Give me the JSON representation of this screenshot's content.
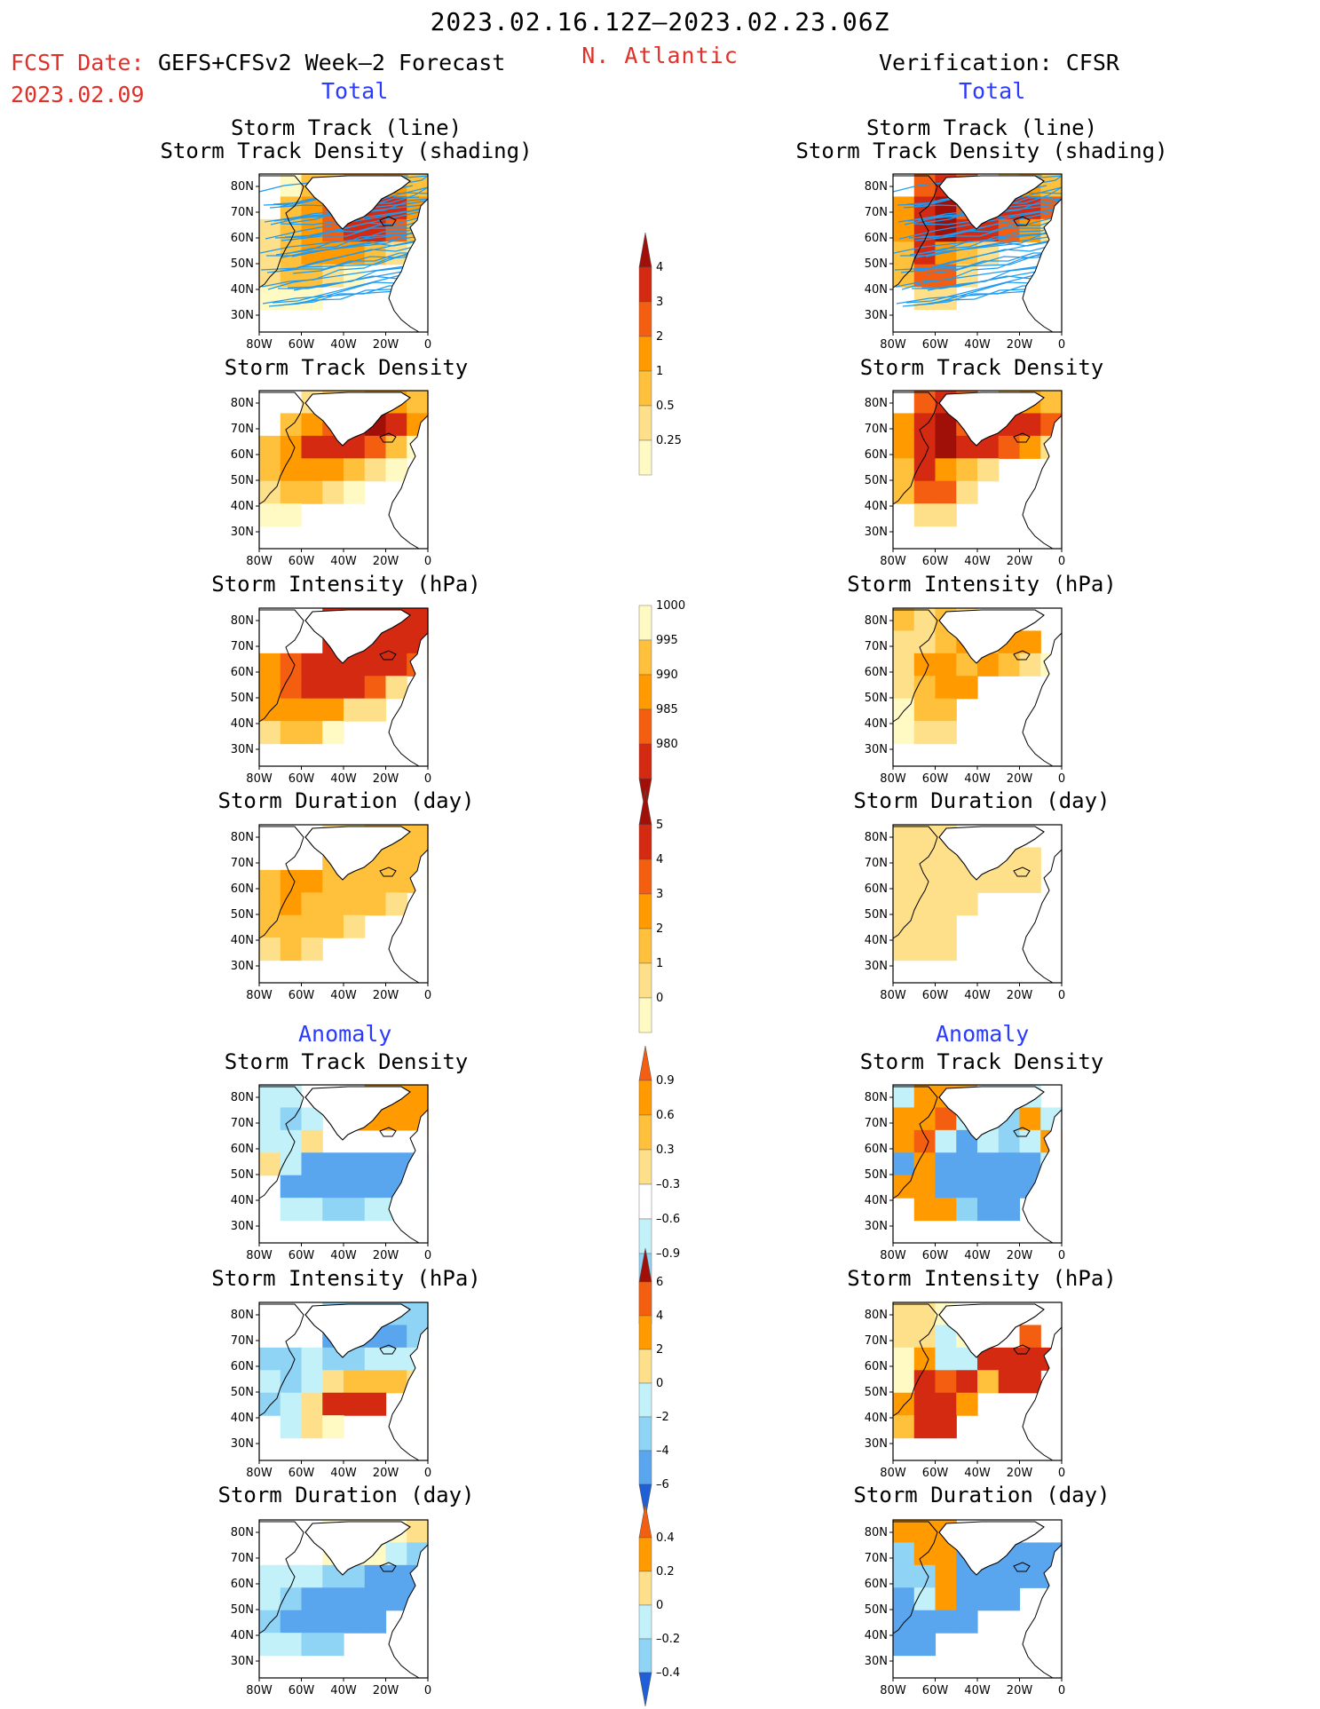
{
  "header": {
    "date_range": "2023.02.16.12Z–2023.02.23.06Z",
    "fcst_label": "FCST Date:",
    "fcst_model": "GEFS+CFSv2 Week–2 Forecast",
    "fcst_date": "2023.02.09",
    "region": "N. Atlantic",
    "verification": "Verification: CFSR",
    "total_left": "Total",
    "total_right": "Total",
    "anomaly_left": "Anomaly",
    "anomaly_right": "Anomaly"
  },
  "titles": {
    "track_line": "Storm Track (line)",
    "track_density_shading": "Storm Track Density (shading)",
    "track_density": "Storm Track Density",
    "intensity": "Storm Intensity (hPa)",
    "duration": "Storm Duration (day)"
  },
  "axes": {
    "x_ticks": [
      "80W",
      "60W",
      "40W",
      "20W",
      "0"
    ],
    "y_ticks": [
      "80N",
      "70N",
      "60N",
      "50N",
      "40N",
      "30N"
    ]
  },
  "colors": {
    "warm": [
      "#fff9c4",
      "#ffe08a",
      "#ffc13b",
      "#ff9a00",
      "#f45e10",
      "#d42a12",
      "#a01008"
    ],
    "cool": [
      "#c2f1f9",
      "#8fd3f5",
      "#5aa6ee",
      "#1f5fd8"
    ],
    "track_line": "#1e9bf0",
    "land_line": "#000000",
    "coast_fill": "#ffffff"
  },
  "chart_data": [
    {
      "type": "heatmap",
      "panel": "forecast-total-track-line",
      "title": "Storm Track (line)",
      "subtitle": "Storm Track Density (shading)",
      "xlim": [
        -80,
        0
      ],
      "ylim": [
        25,
        85
      ],
      "note_series": [
        "track lines",
        "density shading"
      ]
    },
    {
      "type": "heatmap",
      "panel": "forecast-total-density",
      "title": "Storm Track Density",
      "xlim": [
        -80,
        0
      ],
      "ylim": [
        25,
        85
      ]
    },
    {
      "type": "heatmap",
      "panel": "forecast-total-intensity",
      "title": "Storm Intensity (hPa)",
      "xlim": [
        -80,
        0
      ],
      "ylim": [
        25,
        85
      ]
    },
    {
      "type": "heatmap",
      "panel": "forecast-total-duration",
      "title": "Storm Duration (day)",
      "xlim": [
        -80,
        0
      ],
      "ylim": [
        25,
        85
      ]
    },
    {
      "type": "heatmap",
      "panel": "forecast-anomaly-density",
      "title": "Storm Track Density",
      "xlim": [
        -80,
        0
      ],
      "ylim": [
        25,
        85
      ]
    },
    {
      "type": "heatmap",
      "panel": "forecast-anomaly-intensity",
      "title": "Storm Intensity (hPa)",
      "xlim": [
        -80,
        0
      ],
      "ylim": [
        25,
        85
      ]
    },
    {
      "type": "heatmap",
      "panel": "forecast-anomaly-duration",
      "title": "Storm Duration (day)",
      "xlim": [
        -80,
        0
      ],
      "ylim": [
        25,
        85
      ]
    },
    {
      "type": "heatmap",
      "panel": "verification-total-track-line",
      "title": "Storm Track (line)",
      "subtitle": "Storm Track Density (shading)",
      "xlim": [
        -80,
        0
      ],
      "ylim": [
        25,
        85
      ]
    },
    {
      "type": "heatmap",
      "panel": "verification-total-density",
      "title": "Storm Track Density",
      "xlim": [
        -80,
        0
      ],
      "ylim": [
        25,
        85
      ]
    },
    {
      "type": "heatmap",
      "panel": "verification-total-intensity",
      "title": "Storm Intensity (hPa)",
      "xlim": [
        -80,
        0
      ],
      "ylim": [
        25,
        85
      ]
    },
    {
      "type": "heatmap",
      "panel": "verification-total-duration",
      "title": "Storm Duration (day)",
      "xlim": [
        -80,
        0
      ],
      "ylim": [
        25,
        85
      ]
    },
    {
      "type": "heatmap",
      "panel": "verification-anomaly-density",
      "title": "Storm Track Density",
      "xlim": [
        -80,
        0
      ],
      "ylim": [
        25,
        85
      ]
    },
    {
      "type": "heatmap",
      "panel": "verification-anomaly-intensity",
      "title": "Storm Intensity (hPa)",
      "xlim": [
        -80,
        0
      ],
      "ylim": [
        25,
        85
      ]
    },
    {
      "type": "heatmap",
      "panel": "verification-anomaly-duration",
      "title": "Storm Duration (day)",
      "xlim": [
        -80,
        0
      ],
      "ylim": [
        25,
        85
      ]
    }
  ],
  "colorbars": [
    {
      "name": "track-density",
      "labels": [
        "4",
        "3",
        "2",
        "1",
        "0.5",
        "0.25"
      ],
      "colors": [
        "#a01008",
        "#d42a12",
        "#f45e10",
        "#ff9a00",
        "#ffc13b",
        "#ffe08a",
        "#fff9c4"
      ],
      "open_top": true
    },
    {
      "name": "intensity",
      "labels": [
        "1000",
        "995",
        "990",
        "985",
        "980"
      ],
      "colors": [
        "#fff9c4",
        "#ffc13b",
        "#ff9a00",
        "#f45e10",
        "#d42a12",
        "#a01008"
      ],
      "open_bottom": true
    },
    {
      "name": "duration",
      "labels": [
        "5",
        "4",
        "3",
        "2",
        "1",
        "0"
      ],
      "colors": [
        "#a01008",
        "#d42a12",
        "#f45e10",
        "#ff9a00",
        "#ffc13b",
        "#ffe08a",
        "#fff9c4"
      ],
      "open_top": true
    },
    {
      "name": "anom-density",
      "labels": [
        "0.9",
        "0.6",
        "0.3",
        "–0.3",
        "–0.6",
        "–0.9"
      ],
      "colors": [
        "#f45e10",
        "#ff9a00",
        "#ffc13b",
        "#ffe08a",
        "#ffffff",
        "#c2f1f9",
        "#8fd3f5",
        "#5aa6ee",
        "#1f5fd8"
      ],
      "open_top": true,
      "open_bottom": true
    },
    {
      "name": "anom-intensity",
      "labels": [
        "6",
        "4",
        "2",
        "0",
        "–2",
        "–4",
        "–6"
      ],
      "colors": [
        "#a01008",
        "#f45e10",
        "#ff9a00",
        "#ffe08a",
        "#c2f1f9",
        "#8fd3f5",
        "#5aa6ee",
        "#1f5fd8"
      ],
      "open_top": true,
      "open_bottom": true
    },
    {
      "name": "anom-duration",
      "labels": [
        "0.4",
        "0.2",
        "0",
        "–0.2",
        "–0.4"
      ],
      "colors": [
        "#f45e10",
        "#ff9a00",
        "#ffe08a",
        "#c2f1f9",
        "#8fd3f5",
        "#1f5fd8"
      ],
      "open_top": true,
      "open_bottom": true
    }
  ]
}
